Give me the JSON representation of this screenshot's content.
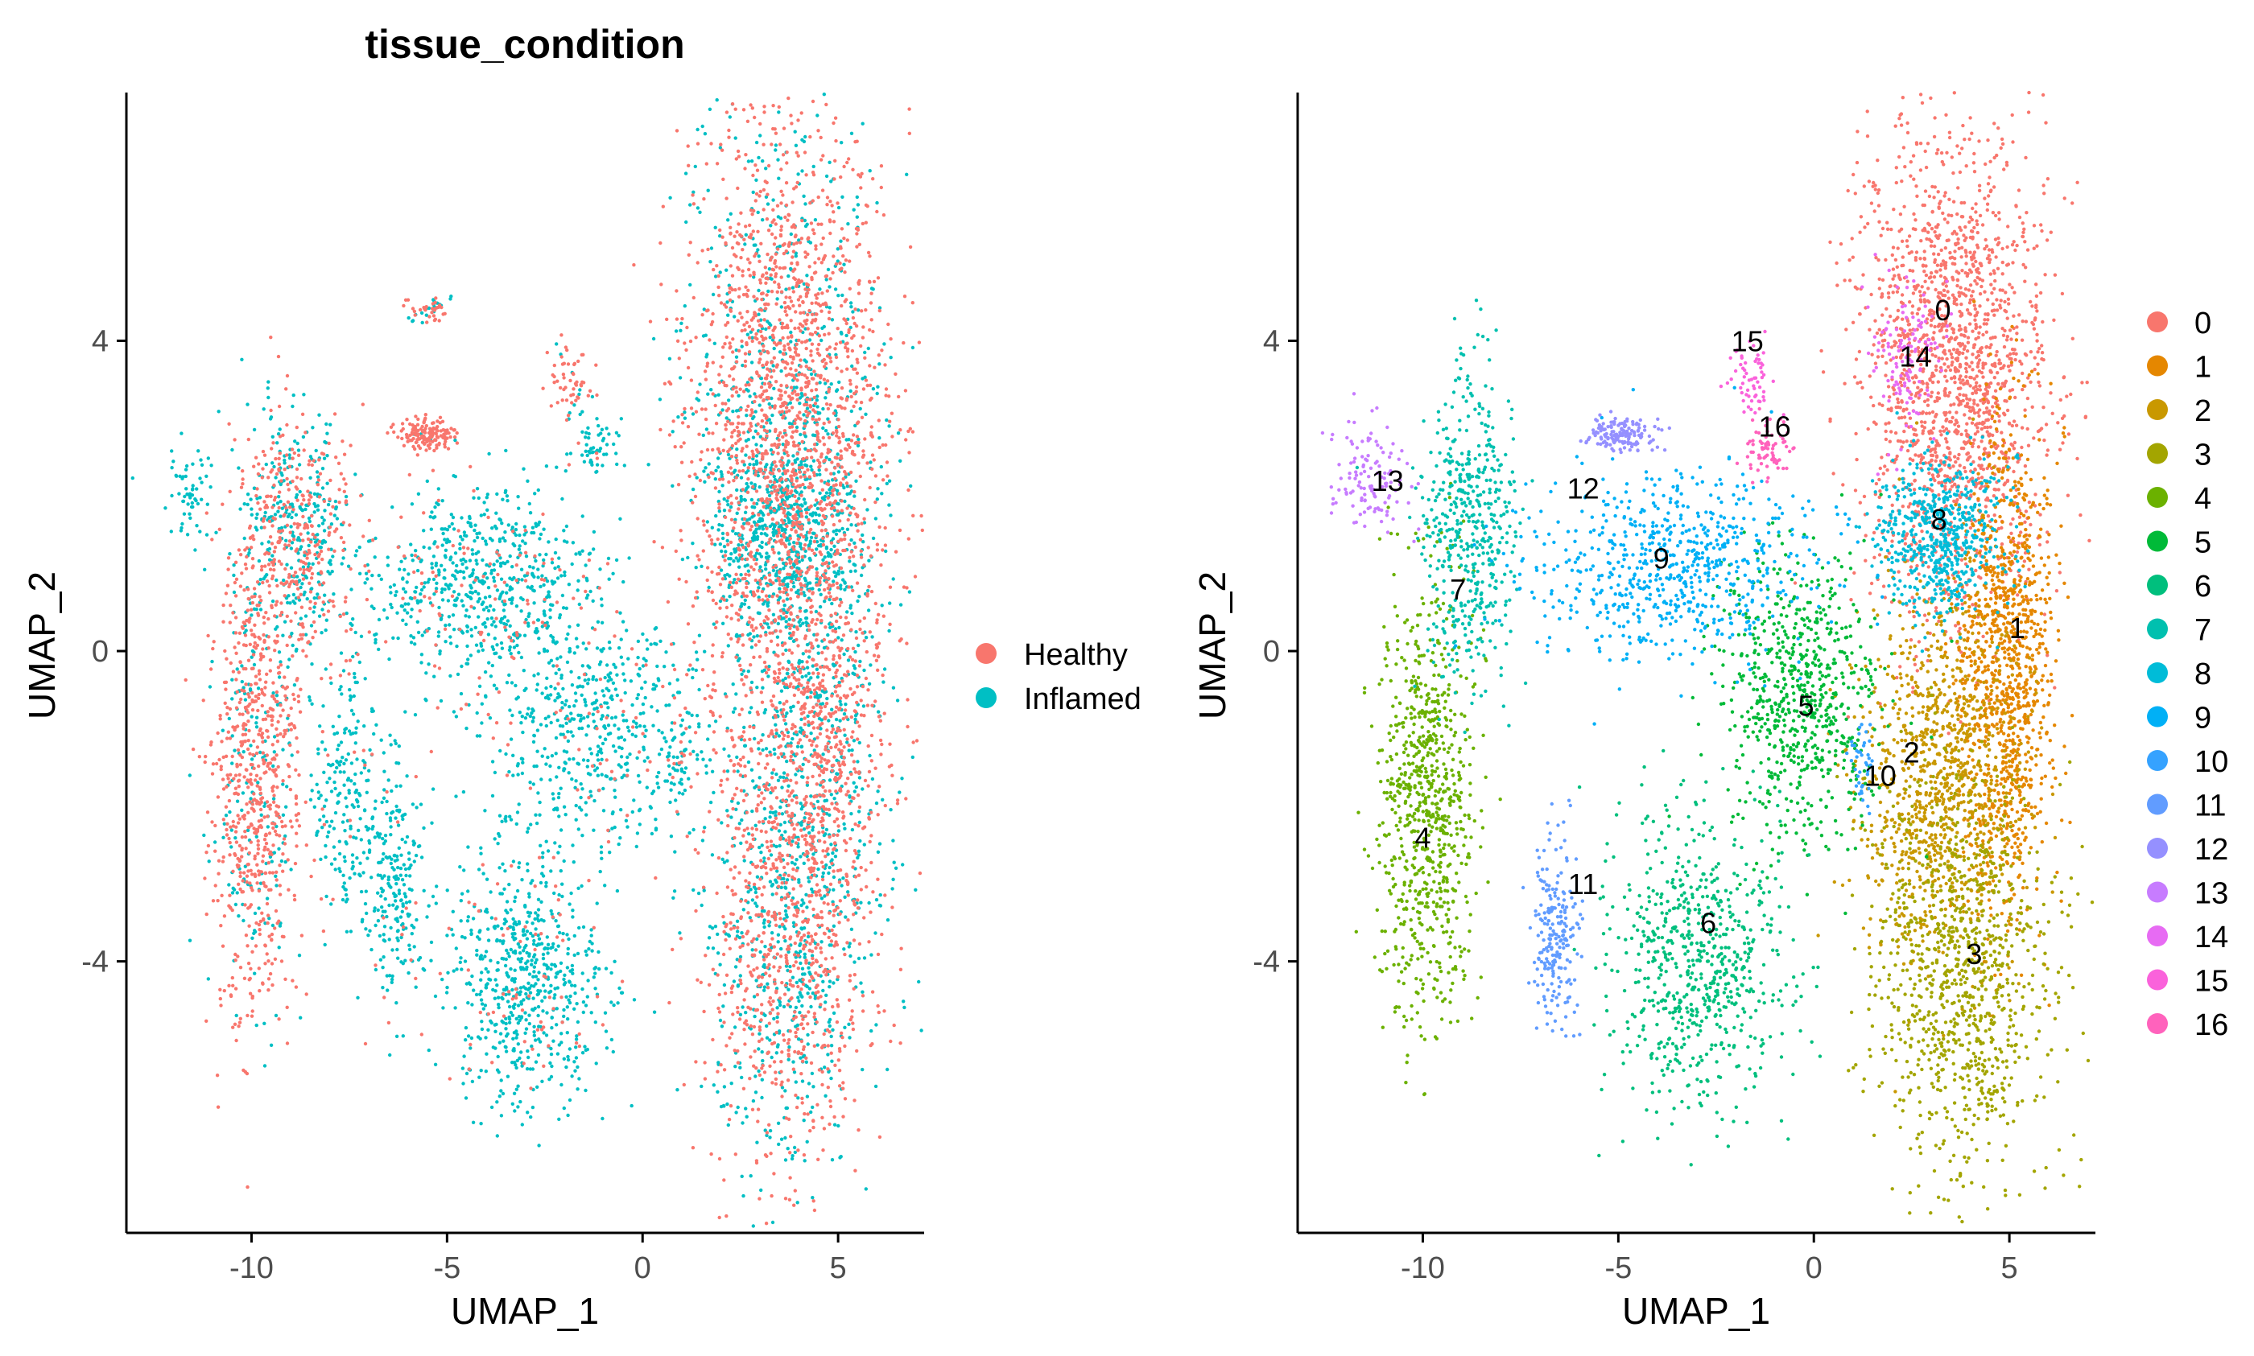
{
  "chart_data": [
    {
      "type": "scatter",
      "title": "tissue_condition",
      "xlabel": "UMAP_1",
      "ylabel": "UMAP_2",
      "xlim": [
        -13.2,
        7.2
      ],
      "ylim": [
        -7.5,
        7.2
      ],
      "xticks": [
        -10,
        -5,
        0,
        5
      ],
      "yticks": [
        -4,
        0,
        4
      ],
      "xtick_labels": [
        "-10",
        "-5",
        "0",
        "5"
      ],
      "ytick_labels": [
        "-4",
        "0",
        "4"
      ],
      "grid": false,
      "legend": {
        "placement": "right",
        "entries": [
          "Healthy",
          "Inflamed"
        ]
      },
      "series": [
        {
          "name": "Healthy",
          "color": "#F8766D"
        },
        {
          "name": "Inflamed",
          "color": "#00BFC4"
        }
      ],
      "regions": [
        {
          "cx": 3.6,
          "cy": 3.2,
          "sx": 1.3,
          "sy": 2.0,
          "n": 2200,
          "mix": 0.72
        },
        {
          "cx": 4.3,
          "cy": -1.0,
          "sx": 1.0,
          "sy": 1.8,
          "n": 1500,
          "mix": 0.6
        },
        {
          "cx": 3.6,
          "cy": -4.0,
          "sx": 1.1,
          "sy": 1.4,
          "n": 1000,
          "mix": 0.55
        },
        {
          "cx": 3.6,
          "cy": 1.6,
          "sx": 0.9,
          "sy": 0.6,
          "n": 600,
          "mix": 0.1
        },
        {
          "cx": -9.9,
          "cy": -1.6,
          "sx": 0.6,
          "sy": 1.6,
          "n": 900,
          "mix": 0.75
        },
        {
          "cx": -8.8,
          "cy": 1.5,
          "sx": 0.7,
          "sy": 0.8,
          "n": 600,
          "mix": 0.5
        },
        {
          "cx": -4.2,
          "cy": 0.9,
          "sx": 1.5,
          "sy": 0.6,
          "n": 700,
          "mix": 0.15
        },
        {
          "cx": -1.2,
          "cy": -1.0,
          "sx": 1.4,
          "sy": 0.8,
          "n": 600,
          "mix": 0.1
        },
        {
          "cx": -3.0,
          "cy": -4.2,
          "sx": 1.0,
          "sy": 0.8,
          "n": 700,
          "mix": 0.1
        },
        {
          "cx": -6.4,
          "cy": -3.0,
          "sx": 0.4,
          "sy": 0.8,
          "n": 250,
          "mix": 0.05
        },
        {
          "cx": -7.6,
          "cy": -1.8,
          "sx": 0.4,
          "sy": 0.8,
          "n": 200,
          "mix": 0.1
        },
        {
          "cx": -5.5,
          "cy": 2.8,
          "sx": 0.4,
          "sy": 0.1,
          "n": 150,
          "mix": 0.95
        },
        {
          "cx": -11.6,
          "cy": 2.0,
          "sx": 0.3,
          "sy": 0.3,
          "n": 60,
          "mix": 0.0
        },
        {
          "cx": -5.5,
          "cy": 4.4,
          "sx": 0.3,
          "sy": 0.08,
          "n": 50,
          "mix": 0.5
        },
        {
          "cx": -1.8,
          "cy": 3.5,
          "sx": 0.3,
          "sy": 0.25,
          "n": 60,
          "mix": 0.8
        },
        {
          "cx": -1.3,
          "cy": 2.6,
          "sx": 0.3,
          "sy": 0.2,
          "n": 60,
          "mix": 0.1
        },
        {
          "cx": 1.0,
          "cy": -1.5,
          "sx": 0.2,
          "sy": 0.3,
          "n": 40,
          "mix": 0.3
        }
      ]
    },
    {
      "type": "scatter",
      "title": "",
      "xlabel": "UMAP_1",
      "ylabel": "UMAP_2",
      "xlim": [
        -13.2,
        7.2
      ],
      "ylim": [
        -7.5,
        7.2
      ],
      "xticks": [
        -10,
        -5,
        0,
        5
      ],
      "yticks": [
        -4,
        0,
        4
      ],
      "xtick_labels": [
        "-10",
        "-5",
        "0",
        "5"
      ],
      "ytick_labels": [
        "-4",
        "0",
        "4"
      ],
      "grid": false,
      "legend": {
        "placement": "right",
        "entries": [
          "0",
          "1",
          "2",
          "3",
          "4",
          "5",
          "6",
          "7",
          "8",
          "9",
          "10",
          "11",
          "12",
          "13",
          "14",
          "15",
          "16"
        ]
      },
      "series": [
        {
          "name": "0",
          "color": "#F8766D",
          "center": [
            3.6,
            3.6
          ],
          "spread": [
            1.2,
            1.6
          ],
          "n": 1800,
          "label_pos": [
            3.3,
            4.4
          ]
        },
        {
          "name": "1",
          "color": "#E58700",
          "center": [
            4.9,
            -0.2
          ],
          "spread": [
            0.6,
            1.5
          ],
          "n": 1100,
          "label_pos": [
            5.2,
            0.3
          ]
        },
        {
          "name": "2",
          "color": "#C99800",
          "center": [
            3.2,
            -1.6
          ],
          "spread": [
            1.0,
            1.2
          ],
          "n": 1000,
          "label_pos": [
            2.5,
            -1.3
          ]
        },
        {
          "name": "3",
          "color": "#A3A500",
          "center": [
            3.8,
            -4.2
          ],
          "spread": [
            1.1,
            1.3
          ],
          "n": 1000,
          "label_pos": [
            4.1,
            -3.9
          ]
        },
        {
          "name": "4",
          "color": "#6BB100",
          "center": [
            -9.9,
            -2.0
          ],
          "spread": [
            0.6,
            1.4
          ],
          "n": 800,
          "label_pos": [
            -10.0,
            -2.4
          ]
        },
        {
          "name": "5",
          "color": "#00BA38",
          "center": [
            -0.3,
            -0.6
          ],
          "spread": [
            1.0,
            0.9
          ],
          "n": 700,
          "label_pos": [
            -0.2,
            -0.7
          ]
        },
        {
          "name": "6",
          "color": "#00BF7D",
          "center": [
            -3.0,
            -4.0
          ],
          "spread": [
            1.1,
            0.9
          ],
          "n": 700,
          "label_pos": [
            -2.7,
            -3.5
          ]
        },
        {
          "name": "7",
          "color": "#00C0AF",
          "center": [
            -8.8,
            1.6
          ],
          "spread": [
            0.6,
            1.0
          ],
          "n": 500,
          "label_pos": [
            -9.1,
            0.8
          ]
        },
        {
          "name": "8",
          "color": "#00BCD8",
          "center": [
            3.2,
            1.5
          ],
          "spread": [
            0.8,
            0.5
          ],
          "n": 600,
          "label_pos": [
            3.2,
            1.7
          ]
        },
        {
          "name": "9",
          "color": "#00B0F6",
          "center": [
            -3.6,
            1.1
          ],
          "spread": [
            1.8,
            0.6
          ],
          "n": 700,
          "label_pos": [
            -3.9,
            1.2
          ]
        },
        {
          "name": "10",
          "color": "#35A2FF",
          "center": [
            1.2,
            -1.4
          ],
          "spread": [
            0.15,
            0.3
          ],
          "n": 40,
          "label_pos": [
            1.7,
            -1.6
          ]
        },
        {
          "name": "11",
          "color": "#619CFF",
          "center": [
            -6.6,
            -3.6
          ],
          "spread": [
            0.3,
            0.6
          ],
          "n": 220,
          "label_pos": [
            -5.9,
            -3.0
          ]
        },
        {
          "name": "12",
          "color": "#9590FF",
          "center": [
            -4.9,
            2.8
          ],
          "spread": [
            0.4,
            0.1
          ],
          "n": 150,
          "label_pos": [
            -5.9,
            2.1
          ]
        },
        {
          "name": "13",
          "color": "#C77CFF",
          "center": [
            -11.4,
            2.2
          ],
          "spread": [
            0.5,
            0.4
          ],
          "n": 120,
          "label_pos": [
            -10.9,
            2.2
          ]
        },
        {
          "name": "14",
          "color": "#E76BF3",
          "center": [
            2.4,
            3.7
          ],
          "spread": [
            0.4,
            0.5
          ],
          "n": 120,
          "label_pos": [
            2.6,
            3.8
          ]
        },
        {
          "name": "15",
          "color": "#FA62DB",
          "center": [
            -1.6,
            3.5
          ],
          "spread": [
            0.3,
            0.25
          ],
          "n": 60,
          "label_pos": [
            -1.7,
            4.0
          ]
        },
        {
          "name": "16",
          "color": "#FF62BC",
          "center": [
            -1.2,
            2.6
          ],
          "spread": [
            0.3,
            0.2
          ],
          "n": 70,
          "label_pos": [
            -1.0,
            2.9
          ]
        }
      ]
    }
  ]
}
